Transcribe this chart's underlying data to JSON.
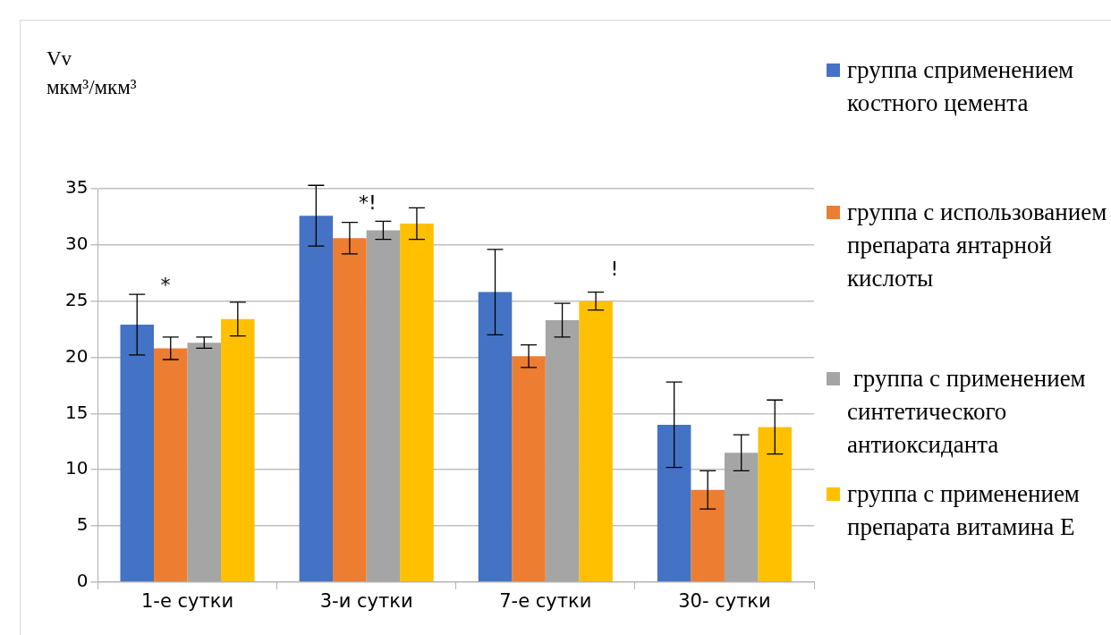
{
  "chart_data": {
    "type": "bar",
    "ylabel": "Vv\nмкм³/мкм³",
    "categories": [
      "1-е сутки",
      "3-и сутки",
      "7-е сутки",
      "30- сутки"
    ],
    "series": [
      {
        "name": "группа сприменением костного цемента",
        "color": "#4472c4",
        "values": [
          22.9,
          32.6,
          25.8,
          14.0
        ],
        "errors": [
          2.7,
          2.7,
          3.8,
          3.8
        ]
      },
      {
        "name": "группа с использованием препарата янтарной кислоты",
        "color": "#ed7d31",
        "values": [
          20.8,
          30.6,
          20.1,
          8.2
        ],
        "errors": [
          1.0,
          1.4,
          1.0,
          1.7
        ]
      },
      {
        "name": " группа с применением синтетического антиоксиданта",
        "color": "#a5a5a5",
        "values": [
          21.3,
          31.3,
          23.3,
          11.5
        ],
        "errors": [
          0.5,
          0.8,
          1.5,
          1.6
        ]
      },
      {
        "name": "группа с применением препарата витамина Е",
        "color": "#ffc000",
        "values": [
          23.4,
          31.9,
          25.0,
          13.8
        ],
        "errors": [
          1.5,
          1.4,
          0.8,
          2.4
        ]
      }
    ],
    "ylim": [
      0,
      35
    ],
    "yticks": [
      0,
      5,
      10,
      15,
      20,
      25,
      30,
      35
    ],
    "grid": "y",
    "legend": "right",
    "annotations": [
      "*",
      "*!",
      "!"
    ]
  }
}
